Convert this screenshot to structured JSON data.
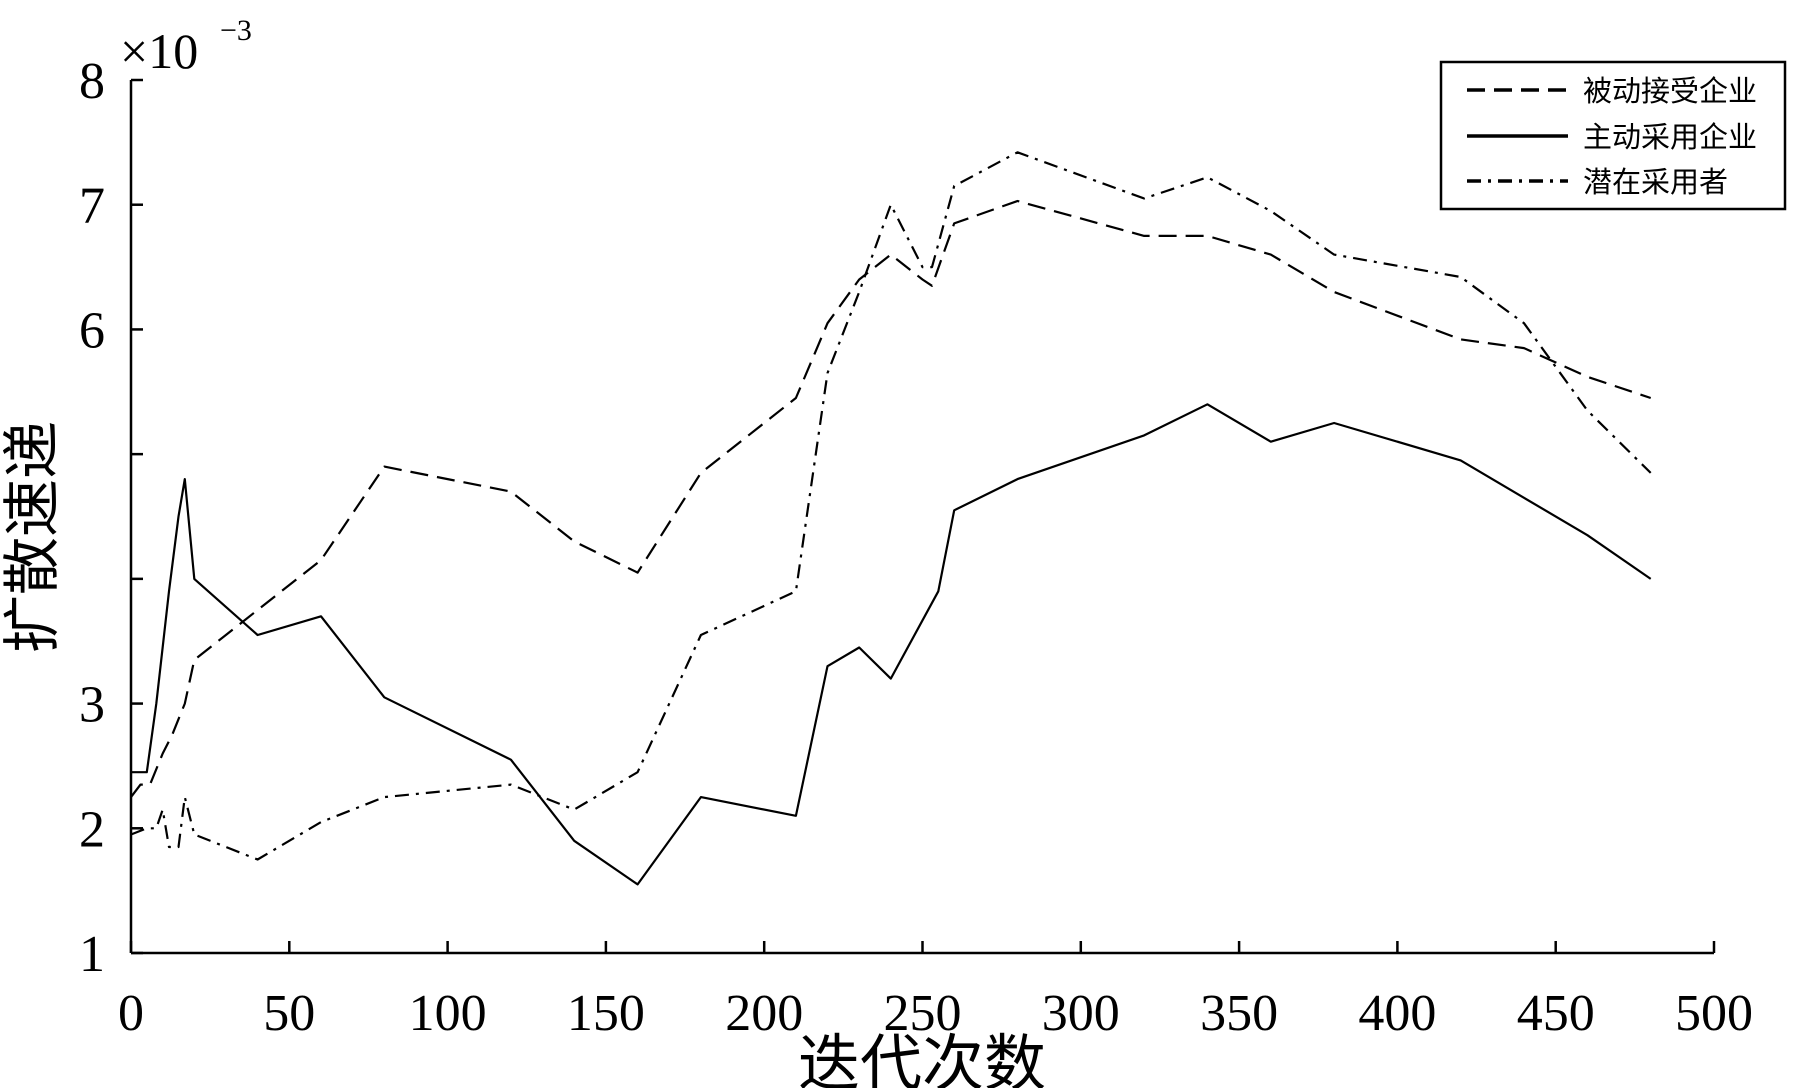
{
  "chart_data": {
    "type": "line",
    "title": "",
    "xlabel": "迭代次数",
    "ylabel": "扩散速递",
    "y_scale_label": "×10",
    "y_scale_exponent": "−3",
    "xlim": [
      0,
      500
    ],
    "ylim": [
      1,
      8
    ],
    "x_ticks": [
      "0",
      "50",
      "100",
      "150",
      "200",
      "250",
      "300",
      "350",
      "400",
      "450",
      "500"
    ],
    "y_ticks": [
      "1",
      "2",
      "3",
      "",
      "",
      "6",
      "7",
      "8"
    ],
    "grid": false,
    "legend_position": "top-right",
    "series": [
      {
        "name": "被动接受企业",
        "style": "dashed",
        "x": [
          0,
          3,
          6,
          10,
          13,
          17,
          20,
          40,
          60,
          80,
          120,
          140,
          160,
          180,
          210,
          220,
          230,
          240,
          250,
          253,
          260,
          280,
          320,
          340,
          360,
          380,
          420,
          440,
          460,
          480
        ],
        "y": [
          2.25,
          2.35,
          2.35,
          2.6,
          2.75,
          3.0,
          3.35,
          3.75,
          4.15,
          4.9,
          4.7,
          4.3,
          4.05,
          4.85,
          5.45,
          6.05,
          6.4,
          6.6,
          6.4,
          6.35,
          6.85,
          7.03,
          6.75,
          6.75,
          6.6,
          6.3,
          5.92,
          5.85,
          5.62,
          5.45
        ]
      },
      {
        "name": "主动采用企业",
        "style": "solid",
        "x": [
          0,
          5,
          8,
          12,
          15,
          17,
          20,
          40,
          60,
          80,
          120,
          140,
          160,
          180,
          210,
          220,
          230,
          240,
          255,
          260,
          280,
          320,
          340,
          360,
          380,
          420,
          440,
          460,
          480
        ],
        "y": [
          2.45,
          2.45,
          3.0,
          3.9,
          4.5,
          4.8,
          4.0,
          3.55,
          3.7,
          3.05,
          2.55,
          1.9,
          1.55,
          2.25,
          2.1,
          3.3,
          3.45,
          3.2,
          3.9,
          4.55,
          4.8,
          5.15,
          5.4,
          5.1,
          5.25,
          4.95,
          4.65,
          4.35,
          4.0
        ]
      },
      {
        "name": "潜在采用者",
        "style": "dash-dot",
        "x": [
          0,
          5,
          8,
          10,
          12,
          15,
          17,
          20,
          40,
          60,
          80,
          120,
          140,
          160,
          180,
          210,
          220,
          230,
          240,
          250,
          253,
          260,
          280,
          320,
          340,
          360,
          380,
          420,
          440,
          460,
          480
        ],
        "y": [
          1.95,
          2.0,
          2.0,
          2.15,
          1.85,
          1.85,
          2.25,
          1.95,
          1.75,
          2.05,
          2.25,
          2.35,
          2.15,
          2.45,
          3.55,
          3.9,
          5.65,
          6.3,
          7.0,
          6.5,
          6.5,
          7.15,
          7.42,
          7.05,
          7.22,
          6.95,
          6.6,
          6.42,
          6.05,
          5.35,
          4.85
        ]
      }
    ]
  }
}
